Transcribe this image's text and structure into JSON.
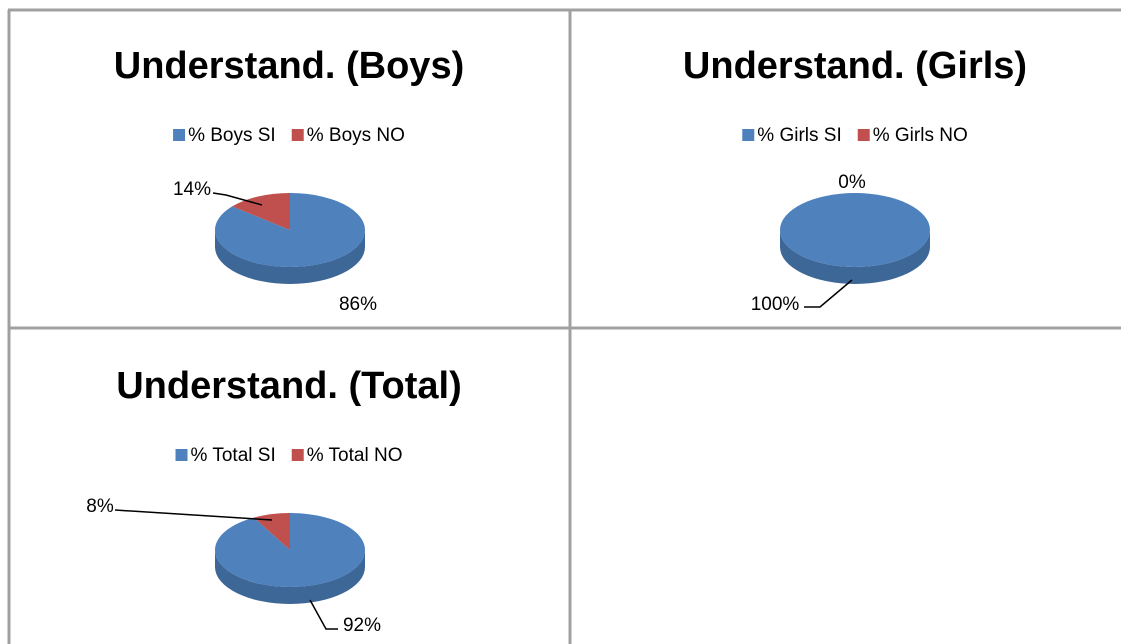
{
  "chart_data": [
    {
      "type": "pie",
      "title": "Understand.  (Boys)",
      "categories": [
        "% Boys SI",
        "% Boys NO"
      ],
      "values": [
        86,
        14
      ],
      "value_labels": [
        "86%",
        "14%"
      ],
      "colors": [
        "#4f81bd",
        "#c0504d"
      ]
    },
    {
      "type": "pie",
      "title": "Understand.  (Girls)",
      "categories": [
        "% Girls SI",
        "% Girls NO"
      ],
      "values": [
        100,
        0
      ],
      "value_labels": [
        "100%",
        "0%"
      ],
      "colors": [
        "#4f81bd",
        "#c0504d"
      ]
    },
    {
      "type": "pie",
      "title": "Understand.  (Total)",
      "categories": [
        "% Total SI",
        "% Total NO"
      ],
      "values": [
        92,
        8
      ],
      "value_labels": [
        "92%",
        "8%"
      ],
      "colors": [
        "#4f81bd",
        "#c0504d"
      ]
    }
  ]
}
